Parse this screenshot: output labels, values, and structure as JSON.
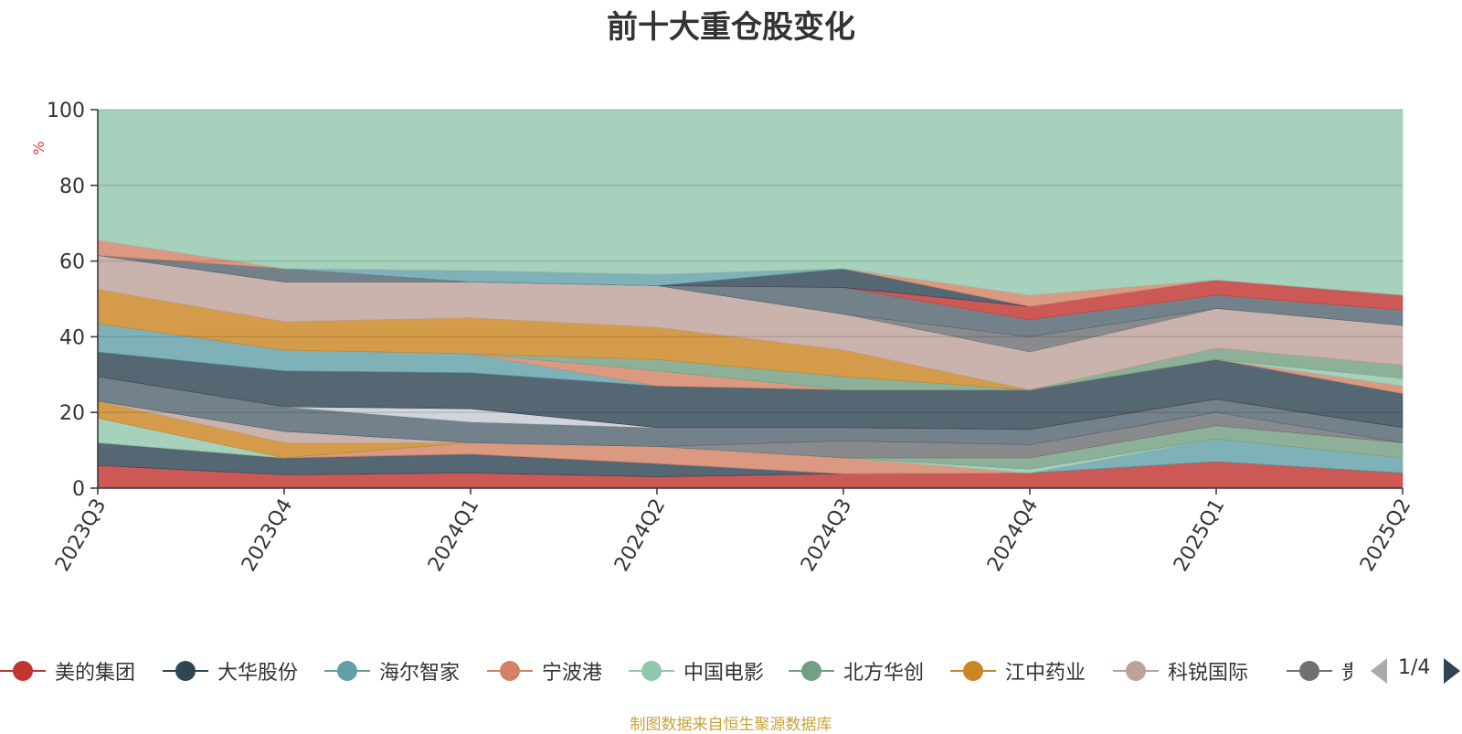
{
  "title": "前十大重仓股变化",
  "source_note": "制图数据来自恒生聚源数据库",
  "pager": {
    "text": "1/4"
  },
  "legend_items": [
    {
      "name": "美的集团",
      "color": "#c23531"
    },
    {
      "name": "大华股份",
      "color": "#2f4554"
    },
    {
      "name": "海尔智家",
      "color": "#61a0a8"
    },
    {
      "name": "宁波港",
      "color": "#d48265"
    },
    {
      "name": "中国电影",
      "color": "#91c7ae"
    },
    {
      "name": "北方华创",
      "color": "#749f83"
    },
    {
      "name": "江中药业",
      "color": "#ca8622"
    },
    {
      "name": "科锐国际",
      "color": "#bda29a"
    },
    {
      "name": "贵州",
      "color": "#6e7074"
    }
  ],
  "chart_data": {
    "type": "area",
    "stacked": true,
    "ylabel": "%",
    "ylim": [
      0,
      100
    ],
    "yticks": [
      0,
      20,
      40,
      60,
      80,
      100
    ],
    "grid": true,
    "x": [
      "2023Q3",
      "2023Q4",
      "2024Q1",
      "2024Q2",
      "2024Q3",
      "2024Q4",
      "2025Q1",
      "2025Q2"
    ],
    "boundaries": [
      [
        6,
        3.5,
        4,
        3,
        3.8,
        4,
        7,
        4
      ],
      [
        12,
        8,
        9,
        6.5,
        3.8,
        4,
        7,
        4
      ],
      [
        12,
        8,
        9,
        6.5,
        3.8,
        4,
        13,
        8
      ],
      [
        12,
        8,
        12,
        11,
        8,
        4,
        13,
        8
      ],
      [
        18.5,
        8,
        12,
        11,
        8,
        5,
        13,
        8
      ],
      [
        18.5,
        8,
        12,
        11,
        8,
        8,
        16.5,
        12
      ],
      [
        23,
        12,
        12,
        11,
        8,
        8,
        16.5,
        12
      ],
      [
        23,
        15,
        12,
        11,
        8,
        8,
        16.5,
        12
      ],
      [
        23,
        15,
        12,
        11,
        12.5,
        11.5,
        20,
        12
      ],
      [
        29.5,
        21.5,
        17.5,
        16,
        16,
        15.5,
        23.5,
        16
      ],
      [
        29.5,
        21.5,
        21,
        16,
        16,
        15.5,
        23.5,
        16
      ],
      [
        29.5,
        21.5,
        21,
        16,
        16,
        15.5,
        23.5,
        16
      ],
      [
        36,
        31,
        30.5,
        27,
        26,
        26,
        34,
        25
      ],
      [
        43.5,
        36.5,
        35.5,
        27,
        26,
        26,
        34,
        25
      ],
      [
        43.5,
        36.5,
        35.5,
        31,
        26,
        26,
        34,
        27
      ],
      [
        43.5,
        36.5,
        35.5,
        31,
        26,
        26,
        34,
        29
      ],
      [
        43.5,
        36.5,
        35.5,
        34,
        29.5,
        26,
        37,
        32.5
      ],
      [
        52.5,
        44,
        45,
        42.5,
        36.5,
        26,
        37,
        32.5
      ],
      [
        61.5,
        54.5,
        54.5,
        53.5,
        46,
        36,
        47.5,
        43
      ],
      [
        61.5,
        54.5,
        54.5,
        53.5,
        46,
        40,
        47.5,
        43
      ],
      [
        61.5,
        58,
        54.5,
        53.5,
        53,
        44.5,
        51,
        47
      ],
      [
        61.5,
        58,
        54.5,
        53.5,
        53,
        44.5,
        51,
        47
      ],
      [
        61.5,
        58,
        54.5,
        53.5,
        53,
        48,
        55,
        51
      ],
      [
        61.5,
        58,
        54.5,
        53.5,
        58,
        48,
        55,
        51
      ],
      [
        61.5,
        58,
        57.5,
        56.5,
        58,
        48,
        55,
        51
      ],
      [
        65.5,
        58,
        57.5,
        56.5,
        58,
        51,
        55,
        51
      ],
      [
        100,
        100,
        100,
        100,
        100,
        100,
        100,
        100
      ]
    ]
  }
}
